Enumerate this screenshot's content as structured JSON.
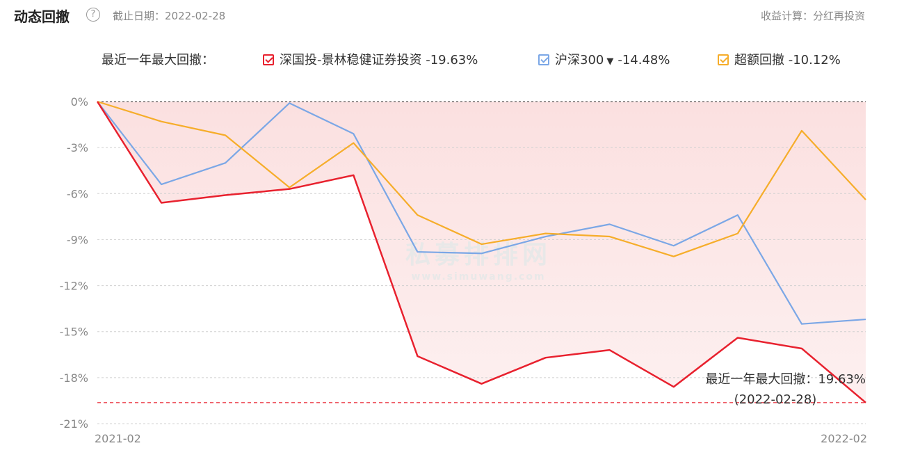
{
  "header": {
    "title": "动态回撤",
    "help_icon": "?",
    "date_label": "截止日期：2022-02-28",
    "calc_label": "收益计算：分红再投资"
  },
  "legend": {
    "title": "最近一年最大回撤：",
    "items": [
      {
        "label": "深国投-景林稳健证券投资",
        "value": "-19.63%",
        "color": "#e8212e",
        "has_dropdown": false
      },
      {
        "label": "沪深300",
        "value": "-14.48%",
        "color": "#7ba7e6",
        "has_dropdown": true
      },
      {
        "label": "超额回撤",
        "value": "-10.12%",
        "color": "#f6ad2a",
        "has_dropdown": false
      }
    ]
  },
  "watermark": {
    "main": "私募排排网",
    "sub": "www.simuwang.com"
  },
  "chart_data": {
    "type": "line",
    "x_labels": [
      "2021-02",
      "2022-02"
    ],
    "yticks": [
      "0%",
      "-3%",
      "-6%",
      "-9%",
      "-12%",
      "-15%",
      "-18%",
      "-21%"
    ],
    "ylim": [
      -21,
      0
    ],
    "grid": true,
    "series": [
      {
        "name": "深国投-景林稳健证券投资",
        "color": "#e8212e",
        "values": [
          0,
          -6.6,
          -6.1,
          -5.7,
          -4.8,
          -16.6,
          -18.4,
          -16.7,
          -16.2,
          -18.6,
          -15.4,
          -16.1,
          -19.63
        ],
        "fill": true
      },
      {
        "name": "沪深300",
        "color": "#7ba7e6",
        "values": [
          0,
          -5.4,
          -4.0,
          -0.1,
          -2.1,
          -9.8,
          -9.9,
          -8.8,
          -8.0,
          -9.4,
          -7.4,
          -14.5,
          -14.2
        ]
      },
      {
        "name": "超额回撤",
        "color": "#f6ad2a",
        "values": [
          0,
          -1.3,
          -2.2,
          -5.6,
          -2.7,
          -7.4,
          -9.3,
          -8.6,
          -8.8,
          -10.1,
          -8.6,
          -1.9,
          -6.4
        ]
      }
    ],
    "max_drawdown_line": -19.63,
    "annotation": {
      "line1": "最近一年最大回撤：19.63%",
      "line2": "(2022-02-28)"
    }
  }
}
